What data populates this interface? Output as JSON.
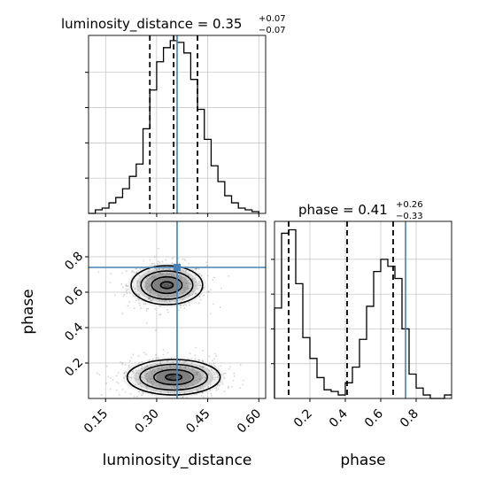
{
  "chart_data": {
    "type": "corner",
    "parameters": [
      "luminosity_distance",
      "phase"
    ],
    "colors": {
      "truth": "#4682b4",
      "hist": "#000000",
      "quantile": "#000000",
      "grid": "#c0c0c0",
      "samples": "#808080",
      "density": [
        "#f0f0f0",
        "#d0d0d0",
        "#a8a8a8",
        "#7a7a7a",
        "#454545"
      ]
    },
    "truth": {
      "luminosity_distance": 0.36,
      "phase": 0.74
    },
    "marginals": {
      "luminosity_distance": {
        "title": {
          "prefix": "luminosity_distance = 0.35",
          "upper": "+0.07",
          "lower": "−0.07"
        },
        "range": [
          0.1,
          0.62
        ],
        "quantiles": [
          0.28,
          0.35,
          0.42
        ],
        "bins": [
          0.1,
          0.12,
          0.14,
          0.16,
          0.18,
          0.2,
          0.22,
          0.24,
          0.26,
          0.28,
          0.3,
          0.32,
          0.34,
          0.36,
          0.38,
          0.4,
          0.42,
          0.44,
          0.46,
          0.48,
          0.5,
          0.52,
          0.54,
          0.56,
          0.58,
          0.6
        ],
        "counts": [
          0,
          2,
          3,
          6,
          9,
          14,
          21,
          28,
          48,
          70,
          86,
          94,
          98,
          97,
          91,
          76,
          59,
          42,
          27,
          18,
          10,
          6,
          3,
          2,
          1
        ]
      },
      "phase": {
        "title": {
          "prefix": "phase = 0.41",
          "upper": "+0.26",
          "lower": "−0.33"
        },
        "range": [
          0.0,
          1.0
        ],
        "quantiles": [
          0.08,
          0.41,
          0.67
        ],
        "bins": [
          0.0,
          0.04,
          0.08,
          0.12,
          0.16,
          0.2,
          0.24,
          0.28,
          0.32,
          0.36,
          0.4,
          0.44,
          0.48,
          0.52,
          0.56,
          0.6,
          0.64,
          0.68,
          0.72,
          0.76,
          0.8,
          0.84,
          0.88,
          0.92,
          0.96,
          1.0
        ],
        "counts": [
          52,
          95,
          97,
          66,
          35,
          23,
          12,
          5,
          4,
          2,
          9,
          18,
          34,
          53,
          73,
          80,
          76,
          69,
          40,
          14,
          6,
          2,
          0,
          0,
          2
        ]
      }
    },
    "joint": {
      "x": "luminosity_distance",
      "y": "phase",
      "xlim": [
        0.1,
        0.62
      ],
      "ylim": [
        0.0,
        1.0
      ],
      "clusters": [
        {
          "center": [
            0.33,
            0.64
          ],
          "spread": [
            0.05,
            0.055
          ]
        },
        {
          "center": [
            0.35,
            0.12
          ],
          "spread": [
            0.065,
            0.05
          ]
        }
      ]
    },
    "axes": {
      "luminosity_distance": {
        "label": "luminosity_distance",
        "ticks": [
          0.15,
          0.3,
          0.45,
          0.6
        ],
        "tick_labels": [
          "0.15",
          "0.30",
          "0.45",
          "0.60"
        ]
      },
      "phase_y": {
        "label": "phase",
        "ticks": [
          0.2,
          0.4,
          0.6,
          0.8
        ],
        "tick_labels": [
          "0.2",
          "0.4",
          "0.6",
          "0.8"
        ]
      },
      "phase_x": {
        "label": "phase",
        "ticks": [
          0.2,
          0.4,
          0.6,
          0.8
        ],
        "tick_labels": [
          "0.2",
          "0.4",
          "0.6",
          "0.8"
        ]
      }
    },
    "grid": true
  }
}
